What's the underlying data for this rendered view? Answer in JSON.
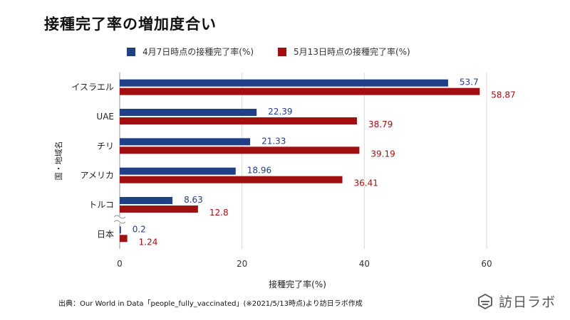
{
  "title": "接種完了率の増加度合い",
  "source": "出典：Our World in Data「people_fully_vaccinated」(※2021/5/13時点)より訪日ラボ作成",
  "logo": {
    "text": "訪日ラボ",
    "icon": "logo-mark-icon"
  },
  "colors": {
    "series1": "#1f3f87",
    "series2": "#a01010",
    "grid": "#d9d9d9",
    "axis": "#999999"
  },
  "chart_data": {
    "type": "bar",
    "orientation": "horizontal",
    "categories": [
      "イスラエル",
      "UAE",
      "チリ",
      "アメリカ",
      "トルコ",
      "日本"
    ],
    "series": [
      {
        "name": "4月7日時点の接種完了率(%)",
        "values": [
          53.7,
          22.39,
          21.33,
          18.96,
          8.63,
          0.2
        ]
      },
      {
        "name": "5月13日時点の接種完了率(%)",
        "values": [
          58.87,
          38.79,
          39.19,
          36.41,
          12.8,
          1.24
        ]
      }
    ],
    "xlabel": "接種完了率(%)",
    "ylabel": "国・地域名",
    "xlim": [
      0,
      60
    ],
    "xticks": [
      0,
      20,
      40,
      60
    ],
    "legend_position": "top",
    "grid": true
  }
}
